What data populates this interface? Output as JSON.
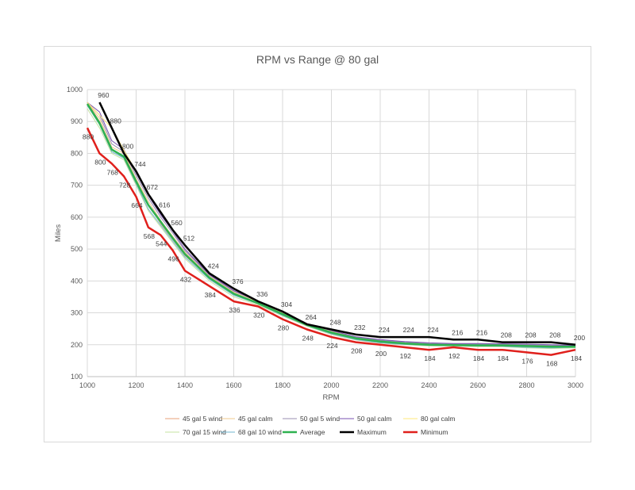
{
  "chart_data": {
    "type": "line",
    "title": "RPM vs Range @ 80 gal",
    "xlabel": "RPM",
    "ylabel": "Miles",
    "xlim": [
      1000,
      3000
    ],
    "ylim": [
      100,
      1000
    ],
    "xticks": [
      1000,
      1200,
      1400,
      1600,
      1800,
      2000,
      2200,
      2400,
      2600,
      2800,
      3000
    ],
    "yticks": [
      100,
      200,
      300,
      400,
      500,
      600,
      700,
      800,
      900,
      1000
    ],
    "grid": true,
    "legend_position": "bottom",
    "x": [
      1000,
      1050,
      1100,
      1150,
      1200,
      1250,
      1300,
      1350,
      1400,
      1500,
      1600,
      1700,
      1800,
      1900,
      2000,
      2100,
      2200,
      2300,
      2400,
      2500,
      2600,
      2700,
      2800,
      2900,
      3000
    ],
    "series": [
      {
        "name": "45 gal 5 wind",
        "color": "#e8a07a",
        "width": 1,
        "values": [
          960,
          900,
          810,
          790,
          710,
          640,
          580,
          530,
          480,
          410,
          360,
          330,
          300,
          265,
          240,
          220,
          210,
          205,
          200,
          200,
          200,
          200,
          200,
          195,
          195
        ]
      },
      {
        "name": "45 gal calm",
        "color": "#f2c98e",
        "width": 1,
        "values": [
          960,
          910,
          820,
          800,
          720,
          650,
          590,
          540,
          490,
          415,
          365,
          335,
          300,
          265,
          242,
          222,
          212,
          206,
          202,
          200,
          200,
          200,
          198,
          195,
          195
        ]
      },
      {
        "name": "50 gal 5 wind",
        "color": "#9a8fb0",
        "width": 1,
        "values": [
          960,
          920,
          830,
          805,
          730,
          660,
          600,
          550,
          495,
          418,
          368,
          336,
          302,
          266,
          244,
          224,
          214,
          208,
          204,
          202,
          202,
          201,
          200,
          198,
          197
        ]
      },
      {
        "name": "50 gal calm",
        "color": "#7a52b0",
        "width": 1,
        "values": [
          960,
          930,
          840,
          812,
          738,
          668,
          608,
          556,
          500,
          420,
          370,
          336,
          303,
          266,
          245,
          225,
          216,
          210,
          206,
          204,
          204,
          203,
          202,
          200,
          198
        ]
      },
      {
        "name": "80 gal calm",
        "color": "#ffe97a",
        "width": 1,
        "values": [
          960,
          920,
          880,
          810,
          744,
          672,
          616,
          560,
          512,
          424,
          376,
          336,
          304,
          264,
          248,
          232,
          224,
          224,
          224,
          216,
          216,
          208,
          208,
          208,
          200
        ]
      },
      {
        "name": "70 gal 15 wind",
        "color": "#c4e3a2",
        "width": 1,
        "values": [
          940,
          880,
          800,
          780,
          700,
          620,
          570,
          520,
          470,
          400,
          350,
          325,
          290,
          258,
          232,
          215,
          205,
          200,
          196,
          196,
          194,
          194,
          190,
          188,
          190
        ]
      },
      {
        "name": "68 gal 10 wind",
        "color": "#72b5cf",
        "width": 1,
        "values": [
          950,
          890,
          805,
          785,
          705,
          625,
          575,
          525,
          475,
          405,
          355,
          328,
          292,
          260,
          234,
          216,
          206,
          201,
          198,
          197,
          196,
          195,
          192,
          190,
          192
        ]
      },
      {
        "name": "Average",
        "color": "#2eb150",
        "width": 2.5,
        "values": [
          955,
          895,
          812,
          790,
          712,
          638,
          586,
          534,
          484,
          410,
          360,
          330,
          296,
          262,
          238,
          220,
          210,
          204,
          200,
          199,
          198,
          198,
          196,
          194,
          194
        ]
      },
      {
        "name": "Maximum",
        "color": "#000000",
        "width": 2.5,
        "values": [
          null,
          960,
          880,
          800,
          744,
          672,
          616,
          560,
          512,
          424,
          376,
          336,
          304,
          264,
          248,
          232,
          224,
          224,
          224,
          216,
          216,
          208,
          208,
          208,
          200
        ]
      },
      {
        "name": "Minimum",
        "color": "#e0201c",
        "width": 2.5,
        "values": [
          880,
          800,
          768,
          728,
          664,
          568,
          544,
          496,
          432,
          384,
          336,
          320,
          280,
          248,
          224,
          208,
          200,
          192,
          184,
          192,
          184,
          184,
          176,
          168,
          184
        ]
      }
    ],
    "data_labels": {
      "above": [
        [
          "960",
          1050,
          960
        ],
        [
          "880",
          1100,
          880
        ],
        [
          "800",
          1150,
          800
        ],
        [
          "744",
          1200,
          744
        ],
        [
          "672",
          1250,
          672
        ],
        [
          "616",
          1300,
          616
        ],
        [
          "560",
          1350,
          560
        ],
        [
          "512",
          1400,
          512
        ],
        [
          "424",
          1500,
          424
        ],
        [
          "376",
          1600,
          376
        ],
        [
          "336",
          1700,
          336
        ],
        [
          "304",
          1800,
          304
        ],
        [
          "264",
          1900,
          264
        ],
        [
          "248",
          2000,
          248
        ],
        [
          "232",
          2100,
          232
        ],
        [
          "224",
          2200,
          224
        ],
        [
          "224",
          2300,
          224
        ],
        [
          "224",
          2400,
          224
        ],
        [
          "216",
          2500,
          216
        ],
        [
          "216",
          2600,
          216
        ],
        [
          "208",
          2700,
          208
        ],
        [
          "208",
          2800,
          208
        ],
        [
          "208",
          2900,
          208
        ],
        [
          "200",
          3000,
          200
        ]
      ],
      "below": [
        [
          "880",
          1000,
          880
        ],
        [
          "800",
          1050,
          800
        ],
        [
          "768",
          1100,
          768
        ],
        [
          "728",
          1150,
          728
        ],
        [
          "664",
          1200,
          664
        ],
        [
          "568",
          1250,
          568
        ],
        [
          "544",
          1300,
          544
        ],
        [
          "496",
          1350,
          496
        ],
        [
          "432",
          1400,
          432
        ],
        [
          "384",
          1500,
          384
        ],
        [
          "336",
          1600,
          336
        ],
        [
          "320",
          1700,
          320
        ],
        [
          "280",
          1800,
          280
        ],
        [
          "248",
          1900,
          248
        ],
        [
          "224",
          2000,
          224
        ],
        [
          "208",
          2100,
          208
        ],
        [
          "200",
          2200,
          200
        ],
        [
          "192",
          2300,
          192
        ],
        [
          "184",
          2400,
          184
        ],
        [
          "192",
          2500,
          192
        ],
        [
          "184",
          2600,
          184
        ],
        [
          "184",
          2700,
          184
        ],
        [
          "176",
          2800,
          176
        ],
        [
          "168",
          2900,
          168
        ],
        [
          "184",
          3000,
          184
        ]
      ]
    }
  }
}
